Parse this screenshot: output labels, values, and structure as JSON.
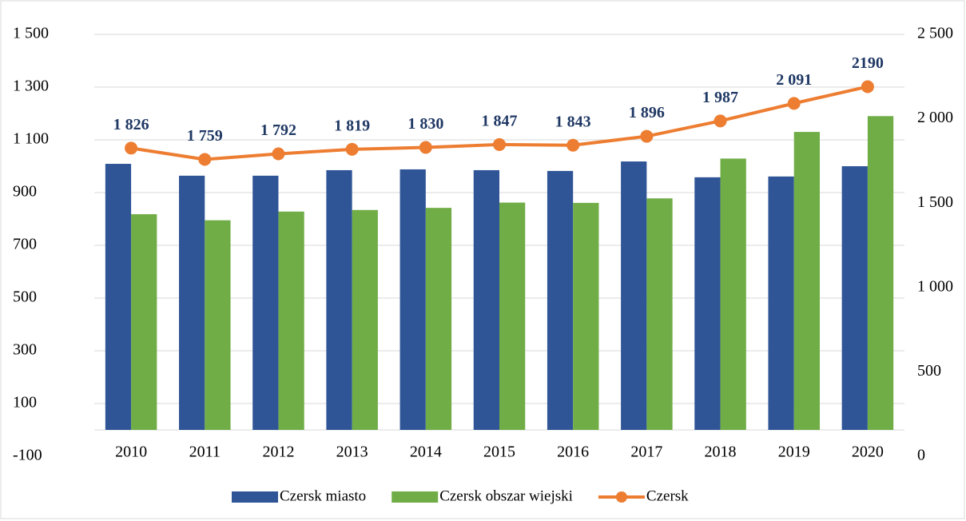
{
  "chart_data": {
    "type": "bar",
    "categories": [
      "2010",
      "2011",
      "2012",
      "2013",
      "2014",
      "2015",
      "2016",
      "2017",
      "2018",
      "2019",
      "2020"
    ],
    "series": [
      {
        "name": "Czersk miasto",
        "color": "#2f5597",
        "values": [
          1009,
          964,
          964,
          985,
          988,
          985,
          982,
          1018,
          958,
          961,
          1000
        ]
      },
      {
        "name": "Czersk obszar wiejski",
        "color": "#70ad47",
        "values": [
          818,
          795,
          828,
          834,
          842,
          862,
          861,
          878,
          1029,
          1130,
          1190
        ]
      },
      {
        "name": "Czersk",
        "type": "line",
        "axis": "y2",
        "color": "#ed7d31",
        "values": [
          1826,
          1759,
          1792,
          1819,
          1830,
          1847,
          1843,
          1896,
          1987,
          2091,
          2190
        ],
        "value_labels": [
          "1 826",
          "1 759",
          "1 792",
          "1 819",
          "1 830",
          "1 847",
          "1 843",
          "1 896",
          "1 987",
          "2 091",
          "2190"
        ]
      }
    ],
    "ylim": [
      -100,
      1500
    ],
    "yticks": [
      -100,
      100,
      300,
      500,
      700,
      900,
      {
        "value": 1100,
        "label": "1 100"
      },
      {
        "value": 1300,
        "label": "1 300"
      },
      {
        "value": 1500,
        "label": "1 500"
      }
    ],
    "y2lim": [
      0,
      2500
    ],
    "y2ticks": [
      0,
      500,
      {
        "value": 1000,
        "label": "1 000"
      },
      {
        "value": 1500,
        "label": "1 500"
      },
      {
        "value": 2000,
        "label": "2 000"
      },
      {
        "value": 2500,
        "label": "2 500"
      }
    ],
    "grid": true,
    "legend": "bottom"
  }
}
